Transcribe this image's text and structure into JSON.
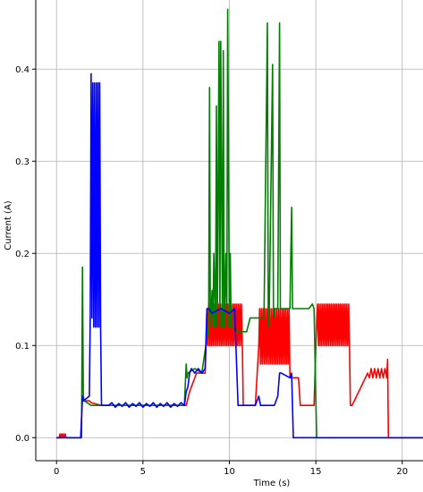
{
  "chart_data": {
    "type": "line",
    "title": "",
    "xlabel": "Time (s)",
    "ylabel": "Current (A)",
    "xlim": [
      -1.2,
      21.2
    ],
    "ylim": [
      -0.025,
      0.475
    ],
    "grid": true,
    "x_ticks": [
      0,
      5,
      10,
      15,
      20
    ],
    "x_tick_labels": [
      "0",
      "5",
      "10",
      "15",
      "20"
    ],
    "y_ticks": [
      0.0,
      0.1,
      0.2,
      0.3,
      0.4
    ],
    "y_tick_labels": [
      "0.0",
      "0.1",
      "0.2",
      "0.3",
      "0.4"
    ],
    "colors": {
      "red": "#ff0000",
      "green": "#008000",
      "blue": "#0000ff"
    },
    "series": [
      {
        "color": "#ff0000",
        "x": [
          0,
          0.15,
          0.2,
          0.25,
          0.3,
          0.35,
          0.4,
          0.45,
          0.5,
          0.55,
          0.6,
          1.4,
          1.5,
          1.55,
          1.9,
          2.0,
          2.6,
          7.5,
          7.7,
          8.1,
          8.6,
          8.7,
          8.75,
          8.8,
          8.85,
          8.9,
          8.95,
          9.0,
          9.05,
          9.1,
          9.15,
          9.2,
          9.25,
          9.3,
          9.35,
          9.4,
          9.45,
          9.5,
          9.55,
          9.6,
          9.65,
          9.7,
          9.75,
          9.8,
          9.85,
          9.9,
          9.95,
          10.0,
          10.05,
          10.1,
          10.15,
          10.2,
          10.25,
          10.3,
          10.35,
          10.4,
          10.45,
          10.5,
          10.55,
          10.6,
          10.65,
          10.7,
          10.75,
          10.8,
          11.5,
          11.7,
          11.75,
          11.8,
          11.85,
          11.9,
          11.95,
          12.0,
          12.05,
          12.1,
          12.15,
          12.2,
          12.25,
          12.3,
          12.35,
          12.4,
          12.45,
          12.5,
          12.55,
          12.6,
          12.65,
          12.7,
          12.75,
          12.8,
          12.85,
          12.9,
          12.95,
          13.0,
          13.05,
          13.1,
          13.15,
          13.2,
          13.25,
          13.3,
          13.35,
          13.4,
          13.45,
          13.5,
          14.0,
          14.1,
          14.9,
          15.0,
          15.1,
          15.15,
          15.2,
          15.25,
          15.3,
          15.35,
          15.4,
          15.45,
          15.5,
          15.55,
          15.6,
          15.65,
          15.7,
          15.75,
          15.8,
          15.85,
          15.9,
          15.95,
          16.0,
          16.05,
          16.1,
          16.15,
          16.2,
          16.25,
          16.3,
          16.35,
          16.4,
          16.45,
          16.5,
          16.55,
          16.6,
          16.65,
          16.7,
          16.75,
          16.8,
          16.85,
          16.9,
          16.95,
          17.0,
          17.1,
          18.0,
          18.1,
          18.2,
          18.3,
          18.4,
          18.5,
          18.6,
          18.7,
          18.8,
          18.9,
          19.0,
          19.1,
          19.15,
          19.2,
          19.3,
          21.2
        ],
        "y": [
          0.0,
          0.0,
          0.004,
          0.0,
          0.004,
          0.0,
          0.004,
          0.0,
          0.004,
          0.0,
          0.0,
          0.0,
          0.045,
          0.04,
          0.04,
          0.038,
          0.035,
          0.035,
          0.05,
          0.07,
          0.07,
          0.14,
          0.1,
          0.145,
          0.1,
          0.145,
          0.1,
          0.145,
          0.1,
          0.145,
          0.1,
          0.145,
          0.1,
          0.145,
          0.1,
          0.145,
          0.1,
          0.145,
          0.1,
          0.145,
          0.1,
          0.145,
          0.1,
          0.145,
          0.1,
          0.145,
          0.1,
          0.145,
          0.1,
          0.145,
          0.1,
          0.145,
          0.1,
          0.145,
          0.1,
          0.145,
          0.1,
          0.145,
          0.1,
          0.145,
          0.1,
          0.145,
          0.1,
          0.035,
          0.035,
          0.1,
          0.14,
          0.08,
          0.14,
          0.08,
          0.14,
          0.08,
          0.14,
          0.08,
          0.14,
          0.08,
          0.14,
          0.08,
          0.14,
          0.08,
          0.14,
          0.08,
          0.14,
          0.08,
          0.14,
          0.08,
          0.14,
          0.08,
          0.14,
          0.08,
          0.14,
          0.08,
          0.14,
          0.08,
          0.14,
          0.08,
          0.14,
          0.08,
          0.14,
          0.08,
          0.14,
          0.065,
          0.065,
          0.035,
          0.035,
          0.1,
          0.145,
          0.1,
          0.145,
          0.1,
          0.145,
          0.1,
          0.145,
          0.1,
          0.145,
          0.1,
          0.145,
          0.1,
          0.145,
          0.1,
          0.145,
          0.1,
          0.145,
          0.1,
          0.145,
          0.1,
          0.145,
          0.1,
          0.145,
          0.1,
          0.145,
          0.1,
          0.145,
          0.1,
          0.145,
          0.1,
          0.145,
          0.1,
          0.145,
          0.1,
          0.145,
          0.1,
          0.145,
          0.1,
          0.035,
          0.035,
          0.07,
          0.065,
          0.075,
          0.065,
          0.075,
          0.065,
          0.075,
          0.065,
          0.075,
          0.065,
          0.075,
          0.065,
          0.085,
          0.0,
          0.0,
          0.0
        ]
      },
      {
        "color": "#008000",
        "x": [
          0,
          1.45,
          1.5,
          1.55,
          1.6,
          2.0,
          2.6,
          7.4,
          7.5,
          7.55,
          7.6,
          8.0,
          8.4,
          8.8,
          8.85,
          8.9,
          9.0,
          9.05,
          9.1,
          9.2,
          9.25,
          9.3,
          9.4,
          9.45,
          9.5,
          9.6,
          9.65,
          9.7,
          9.8,
          9.85,
          9.9,
          10.0,
          10.05,
          10.1,
          10.2,
          10.3,
          10.5,
          11.0,
          11.2,
          11.6,
          12.0,
          12.2,
          12.25,
          12.3,
          12.5,
          12.55,
          12.6,
          12.8,
          12.9,
          12.95,
          13.0,
          13.2,
          13.5,
          13.6,
          13.65,
          13.7,
          14.0,
          14.2,
          14.6,
          14.8,
          14.9,
          15.0,
          15.05,
          15.1,
          21.2
        ],
        "y": [
          0.0,
          0.0,
          0.185,
          0.045,
          0.04,
          0.035,
          0.035,
          0.035,
          0.08,
          0.065,
          0.07,
          0.075,
          0.07,
          0.12,
          0.38,
          0.12,
          0.16,
          0.12,
          0.2,
          0.12,
          0.36,
          0.12,
          0.43,
          0.12,
          0.43,
          0.12,
          0.42,
          0.12,
          0.2,
          0.12,
          0.465,
          0.12,
          0.2,
          0.12,
          0.12,
          0.12,
          0.115,
          0.115,
          0.13,
          0.13,
          0.13,
          0.45,
          0.12,
          0.13,
          0.405,
          0.13,
          0.14,
          0.14,
          0.45,
          0.14,
          0.14,
          0.14,
          0.14,
          0.25,
          0.14,
          0.14,
          0.14,
          0.14,
          0.14,
          0.145,
          0.14,
          0.04,
          0.0,
          0.0,
          0.0
        ]
      },
      {
        "color": "#0000ff",
        "x": [
          0,
          1.4,
          1.5,
          1.55,
          1.9,
          1.95,
          2.0,
          2.05,
          2.1,
          2.15,
          2.2,
          2.25,
          2.3,
          2.35,
          2.4,
          2.45,
          2.5,
          2.55,
          2.6,
          3.0,
          3.2,
          3.4,
          3.6,
          3.8,
          4.0,
          4.2,
          4.4,
          4.6,
          4.8,
          5.0,
          5.2,
          5.4,
          5.6,
          5.8,
          6.0,
          6.2,
          6.4,
          6.6,
          6.8,
          7.0,
          7.2,
          7.4,
          7.5,
          7.6,
          7.7,
          7.8,
          8.0,
          8.2,
          8.4,
          8.6,
          8.7,
          8.8,
          9.0,
          9.5,
          10.0,
          10.3,
          10.5,
          10.6,
          11.0,
          11.5,
          11.7,
          11.8,
          12.0,
          12.5,
          12.6,
          12.8,
          12.9,
          13.0,
          13.5,
          13.6,
          13.7,
          14.0,
          21.2
        ],
        "y": [
          0.0,
          0.0,
          0.045,
          0.04,
          0.045,
          0.13,
          0.395,
          0.13,
          0.385,
          0.12,
          0.385,
          0.12,
          0.385,
          0.12,
          0.385,
          0.12,
          0.385,
          0.12,
          0.035,
          0.035,
          0.038,
          0.033,
          0.037,
          0.034,
          0.038,
          0.033,
          0.037,
          0.034,
          0.038,
          0.033,
          0.037,
          0.034,
          0.038,
          0.033,
          0.037,
          0.034,
          0.038,
          0.033,
          0.037,
          0.034,
          0.038,
          0.035,
          0.05,
          0.055,
          0.07,
          0.075,
          0.07,
          0.075,
          0.07,
          0.075,
          0.14,
          0.14,
          0.135,
          0.14,
          0.135,
          0.14,
          0.035,
          0.035,
          0.035,
          0.035,
          0.045,
          0.035,
          0.035,
          0.035,
          0.035,
          0.045,
          0.07,
          0.07,
          0.065,
          0.07,
          0.0,
          0.0,
          0.0
        ]
      }
    ]
  }
}
